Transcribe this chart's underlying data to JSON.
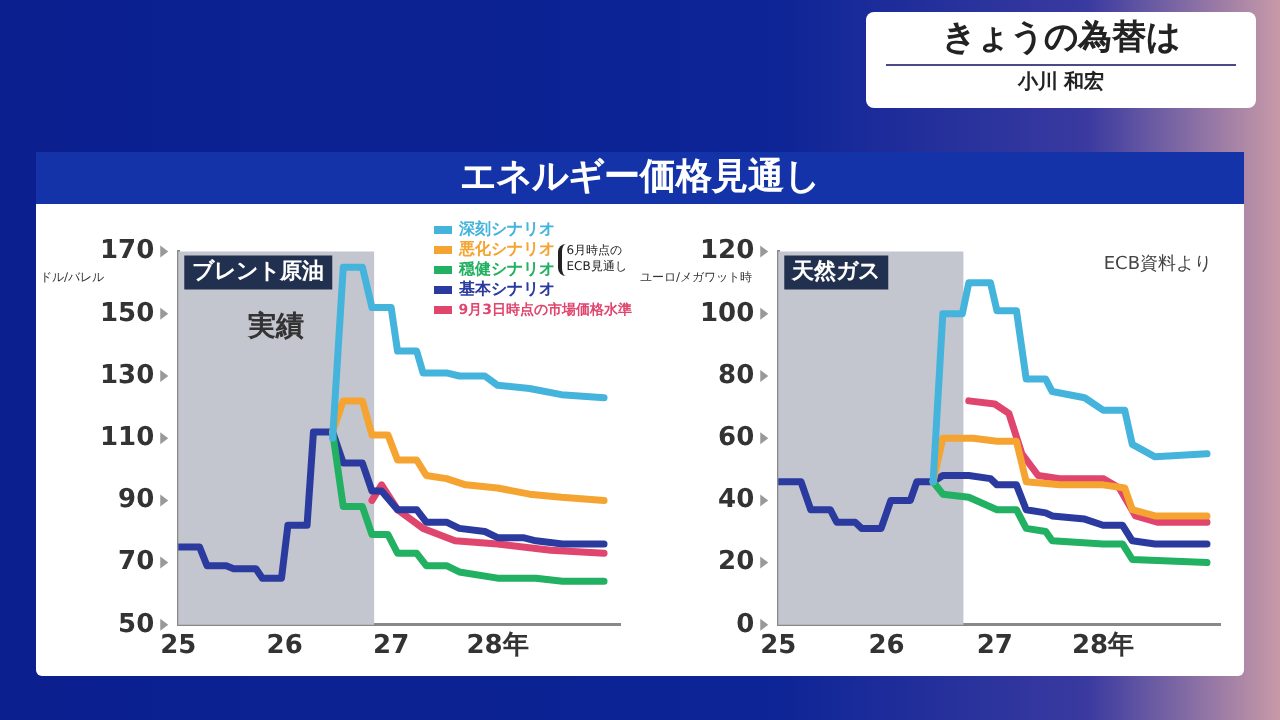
{
  "chart_data": [
    {
      "type": "other",
      "title": "きょうの為替は",
      "annotations": [
        "小川 和宏"
      ]
    },
    {
      "type": "line",
      "title": "エネルギー価格見通し",
      "subtitle": "ブレント原油",
      "ylabel": "ドル/バレル",
      "xlim": [
        25,
        29.15
      ],
      "xticks": [
        25,
        26,
        27,
        {
          "value": 28,
          "label": "28年"
        }
      ],
      "ylim": [
        50,
        170
      ],
      "yticks": [
        50,
        70,
        90,
        110,
        130,
        150,
        170
      ],
      "grid": false,
      "legend": "top right",
      "marker": "none",
      "line_style": "solid",
      "legend_title": "6月時点のECB見通し",
      "bands": [
        {
          "axis": "x",
          "from": 25,
          "to": 26.84,
          "label": "実績",
          "color": "#c3c6ce"
        }
      ],
      "series": [
        {
          "name": "深刻シナリオ",
          "color": "#45b4dc",
          "x": [
            26.45,
            26.55,
            26.73,
            26.82,
            27.0,
            27.06,
            27.24,
            27.3,
            27.52,
            27.64,
            27.88,
            28.0,
            28.3,
            28.6,
            29.0
          ],
          "values": [
            110,
            165,
            165,
            152,
            152,
            138,
            138,
            131,
            131,
            130,
            130,
            127,
            126,
            124,
            123
          ]
        },
        {
          "name": "悪化シナリオ",
          "color": "#f5a431",
          "x": [
            26.45,
            26.55,
            26.73,
            26.82,
            26.97,
            27.06,
            27.24,
            27.33,
            27.52,
            27.7,
            28.0,
            28.3,
            28.6,
            29.0
          ],
          "values": [
            112,
            122,
            122,
            111,
            111,
            103,
            103,
            98,
            97,
            95,
            94,
            92,
            91,
            90
          ]
        },
        {
          "name": "穏健シナリオ",
          "color": "#22b062",
          "x": [
            26.45,
            26.55,
            26.73,
            26.82,
            26.97,
            27.06,
            27.24,
            27.33,
            27.52,
            27.64,
            28.0,
            28.36,
            28.61,
            29.0
          ],
          "values": [
            112,
            88,
            88,
            79,
            79,
            73,
            73,
            69,
            69,
            67,
            65,
            65,
            64,
            64
          ]
        },
        {
          "name": "基本シナリオ",
          "color": "#2a3a9e",
          "x": [
            25,
            25.2,
            25.27,
            25.45,
            25.52,
            25.73,
            25.79,
            25.97,
            26.03,
            26.21,
            26.27,
            26.45,
            26.55,
            26.73,
            26.82,
            26.91,
            27.06,
            27.24,
            27.33,
            27.52,
            27.64,
            27.88,
            28.0,
            28.24,
            28.36,
            28.61,
            29.0
          ],
          "values": [
            75,
            75,
            69,
            69,
            68,
            68,
            65,
            65,
            82,
            82,
            112,
            112,
            102,
            102,
            93,
            93,
            87,
            87,
            83,
            83,
            81,
            80,
            78,
            78,
            77,
            76,
            76
          ]
        },
        {
          "name": "9月3日時点の市場価格水準",
          "color": "#e0456e",
          "x": [
            26.82,
            26.91,
            27.06,
            27.3,
            27.6,
            28.0,
            28.5,
            29.0
          ],
          "values": [
            90,
            95,
            87,
            81,
            77,
            76,
            74,
            73
          ]
        }
      ]
    },
    {
      "type": "line",
      "subtitle": "天然ガス",
      "ylabel": "ユーロ/メガワット時",
      "annotations": [
        "ECB資料より"
      ],
      "xlim": [
        25,
        29.08
      ],
      "xticks": [
        25,
        26,
        27,
        {
          "value": 28,
          "label": "28年"
        }
      ],
      "ylim": [
        0,
        120
      ],
      "yticks": [
        0,
        20,
        40,
        60,
        80,
        100,
        120
      ],
      "grid": false,
      "marker": "none",
      "line_style": "solid",
      "bands": [
        {
          "axis": "x",
          "from": 25,
          "to": 26.71,
          "color": "#c3c6ce"
        }
      ],
      "series": [
        {
          "color": "#45b4dc",
          "x": [
            26.43,
            26.52,
            26.7,
            26.76,
            26.96,
            27.02,
            27.2,
            27.29,
            27.47,
            27.53,
            27.83,
            28.0,
            28.2,
            28.27,
            28.48,
            28.96
          ],
          "values": [
            46,
            100,
            100,
            110,
            110,
            101,
            101,
            79,
            79,
            75,
            73,
            69,
            69,
            58,
            54,
            55
          ]
        },
        {
          "color": "#f5a431",
          "x": [
            26.43,
            26.52,
            26.8,
            27.02,
            27.2,
            27.29,
            27.6,
            28.0,
            28.2,
            28.27,
            28.48,
            28.96
          ],
          "values": [
            46,
            60,
            60,
            59,
            59,
            46,
            45,
            45,
            44,
            37,
            35,
            35
          ]
        },
        {
          "color": "#22b062",
          "x": [
            26.43,
            26.52,
            26.76,
            27.02,
            27.2,
            27.29,
            27.47,
            27.53,
            28.0,
            28.18,
            28.27,
            28.96
          ],
          "values": [
            46,
            42,
            41,
            37,
            37,
            31,
            30,
            27,
            26,
            26,
            21,
            20
          ]
        },
        {
          "color": "#2a3a9e",
          "x": [
            25,
            25.21,
            25.3,
            25.48,
            25.54,
            25.71,
            25.77,
            25.95,
            26.04,
            26.22,
            26.28,
            26.43,
            26.52,
            26.76,
            26.96,
            27.02,
            27.2,
            27.29,
            27.47,
            27.53,
            27.83,
            28.0,
            28.18,
            28.27,
            28.48,
            28.96
          ],
          "values": [
            46,
            46,
            37,
            37,
            33,
            33,
            31,
            31,
            40,
            40,
            46,
            46,
            48,
            48,
            47,
            45,
            45,
            37,
            36,
            35,
            34,
            32,
            32,
            27,
            26,
            26
          ]
        },
        {
          "color": "#e0456e",
          "x": [
            26.76,
            27.0,
            27.13,
            27.25,
            27.4,
            27.6,
            28.0,
            28.15,
            28.3,
            28.5,
            28.96
          ],
          "values": [
            72,
            71,
            68,
            55,
            48,
            47,
            47,
            44,
            35,
            33,
            33
          ]
        }
      ]
    }
  ]
}
